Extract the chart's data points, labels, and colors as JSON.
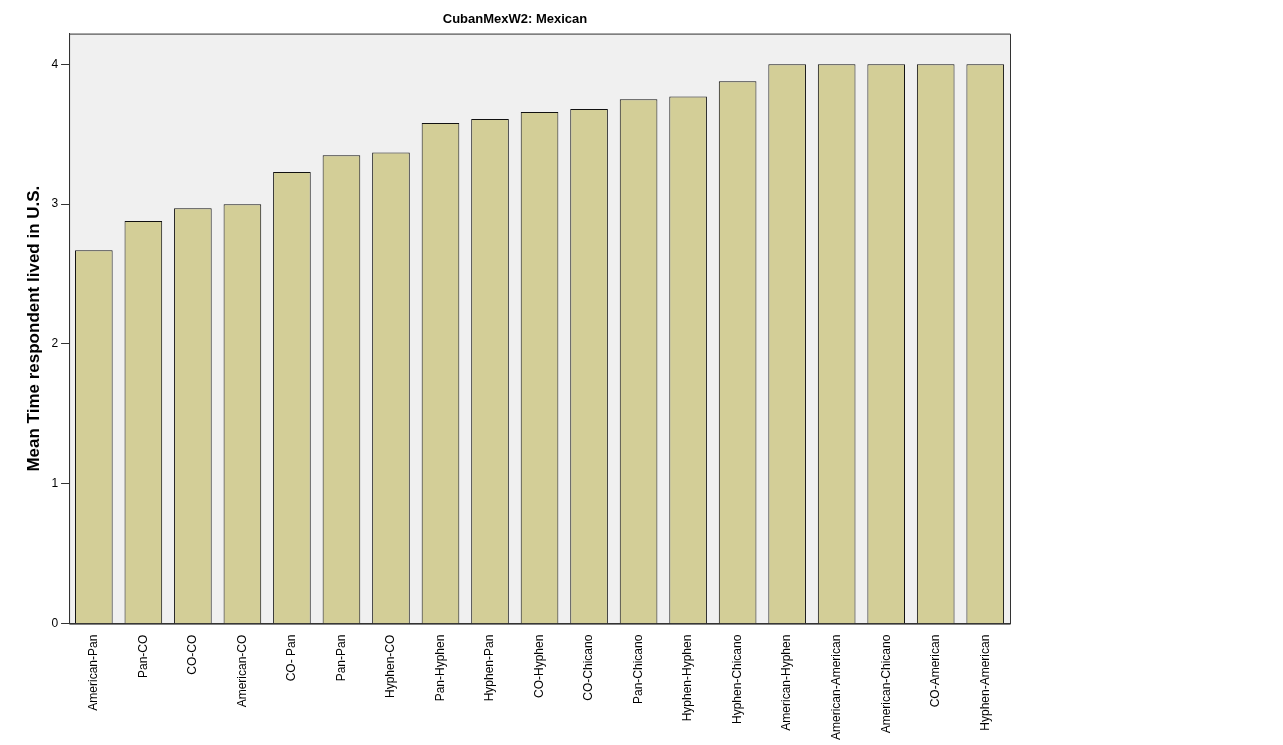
{
  "chart_data": {
    "type": "bar",
    "title": "CubanMexW2: Mexican",
    "ylabel": "Mean Time respondent lived in U.S.",
    "categories": [
      "American-Pan",
      "Pan-CO",
      "CO-CO",
      "American-CO",
      "CO- Pan",
      "Pan-Pan",
      "Hyphen-CO",
      "Pan-Hyphen",
      "Hyphen-Pan",
      "CO-Hyphen",
      "CO-Chicano",
      "Pan-Chicano",
      "Hyphen-Hyphen",
      "Hyphen-Chicano",
      "American-Hyphen",
      "American-American",
      "American-Chicano",
      "CO-American",
      "Hyphen-American"
    ],
    "values": [
      2.67,
      2.88,
      2.97,
      3.0,
      3.23,
      3.35,
      3.37,
      3.58,
      3.61,
      3.66,
      3.68,
      3.75,
      3.77,
      3.88,
      4,
      4,
      4,
      4,
      4
    ],
    "color": "#d3ce97",
    "ylim": [
      0,
      4.22
    ],
    "yticks": [
      0,
      1,
      2,
      3,
      4
    ],
    "grid": false,
    "legend": false
  }
}
